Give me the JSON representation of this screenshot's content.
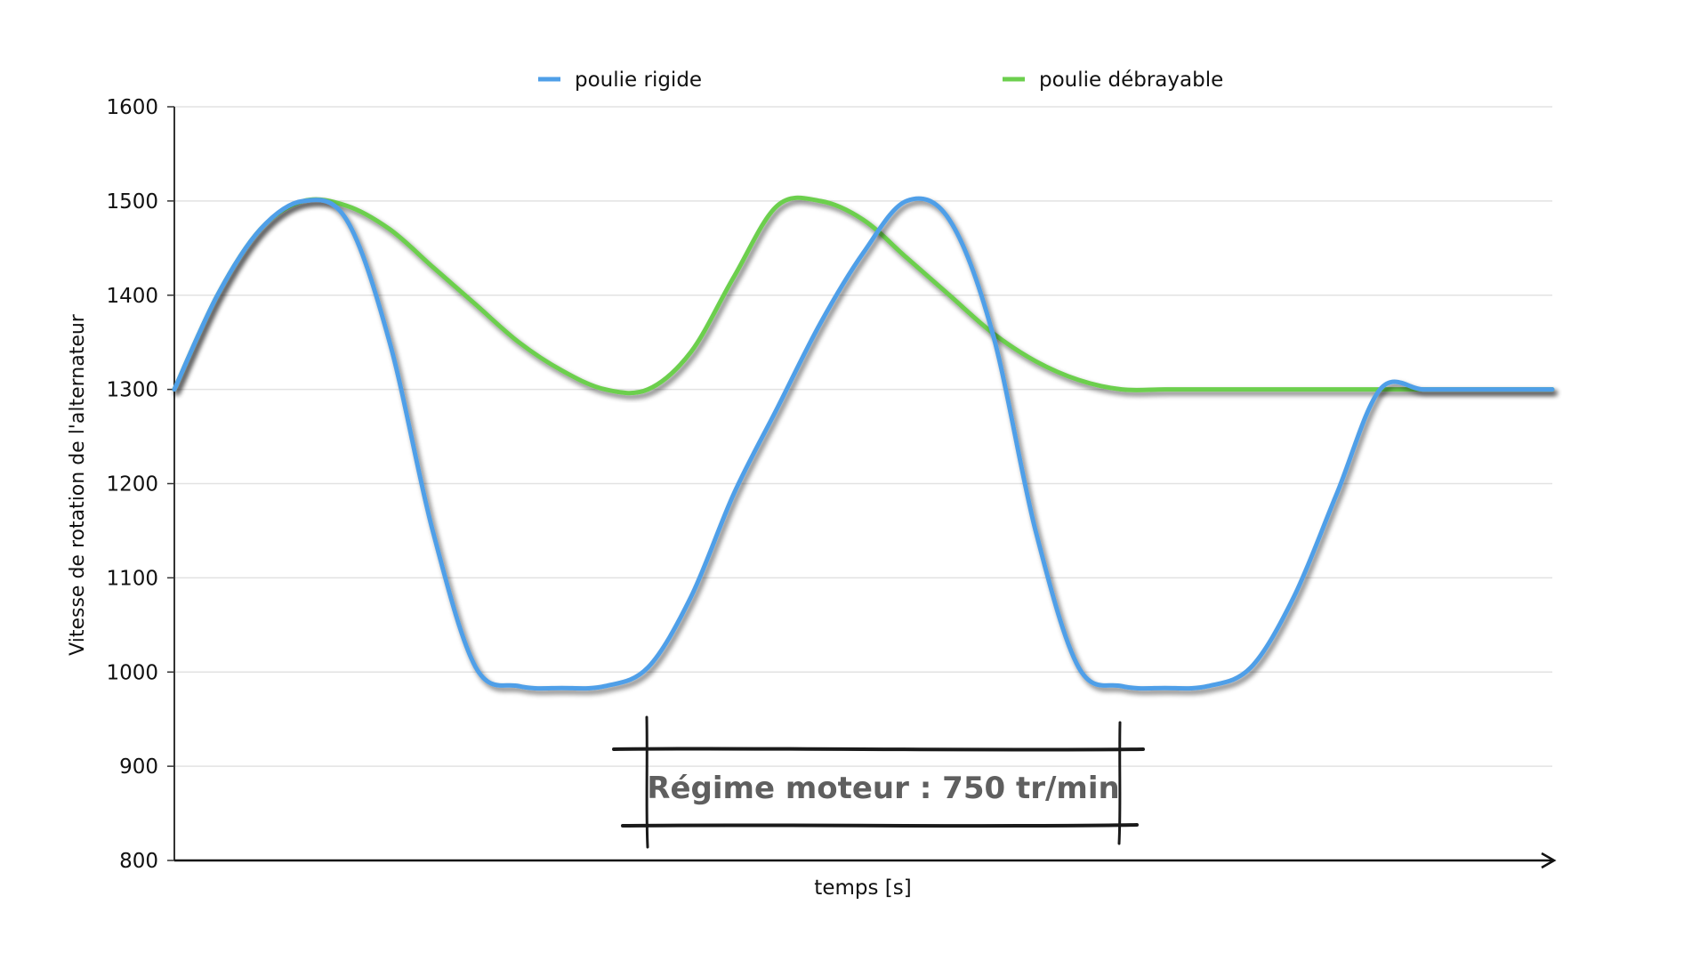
{
  "chart_data": {
    "type": "line",
    "title": "",
    "xlabel": "temps [s]",
    "ylabel": "Vitesse de rotation de l'alternateur",
    "ylim": [
      800,
      1600
    ],
    "yticks": [
      800,
      900,
      1000,
      1100,
      1200,
      1300,
      1400,
      1500,
      1600
    ],
    "grid": true,
    "legend_position": "top",
    "annotation": "Régime moteur : 750 tr/min",
    "x": [
      0,
      0.125,
      0.25,
      0.375,
      0.5,
      0.625,
      0.75,
      0.875,
      1.0,
      1.125,
      1.25,
      1.375,
      1.5,
      1.625,
      1.75,
      1.875,
      2.0,
      2.125,
      2.25,
      2.375,
      2.5,
      2.625,
      2.75,
      2.875,
      3.0,
      3.125,
      3.25,
      3.375,
      3.5,
      3.625,
      3.75,
      3.875,
      4.0
    ],
    "series": [
      {
        "name": "poulie rigide",
        "color": "#4f9fe8",
        "values": [
          1300,
          1400,
          1470,
          1500,
          1480,
          1350,
          1150,
          1005,
          985,
          983,
          985,
          1005,
          1080,
          1190,
          1280,
          1370,
          1445,
          1500,
          1480,
          1360,
          1150,
          1005,
          985,
          983,
          985,
          1005,
          1080,
          1190,
          1300,
          1300,
          1300,
          1300,
          1300
        ]
      },
      {
        "name": "poulie débrayable",
        "color": "#6ccf4e",
        "values": [
          1300,
          1400,
          1470,
          1500,
          1495,
          1470,
          1430,
          1390,
          1350,
          1320,
          1300,
          1300,
          1340,
          1420,
          1495,
          1500,
          1480,
          1440,
          1400,
          1360,
          1330,
          1310,
          1300,
          1300,
          1300,
          1300,
          1300,
          1300,
          1300,
          1300,
          1300,
          1300,
          1300
        ]
      }
    ]
  }
}
